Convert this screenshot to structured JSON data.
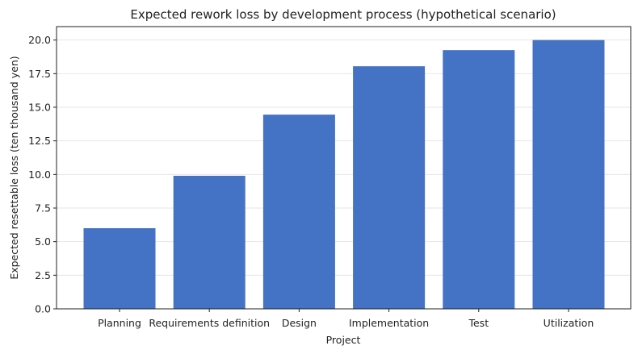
{
  "chart_data": {
    "type": "bar",
    "title": "Expected rework loss by development process (hypothetical scenario)",
    "xlabel": "Project",
    "ylabel": "Expected resettable loss (ten thousand yen)",
    "categories": [
      "Planning",
      "Requirements definition",
      "Design",
      "Implementation",
      "Test",
      "Utilization"
    ],
    "values": [
      6.0,
      9.9,
      14.45,
      18.05,
      19.25,
      20.0
    ],
    "ylim": [
      0,
      21
    ],
    "yticks": [
      "0.0",
      "2.5",
      "5.0",
      "7.5",
      "10.0",
      "12.5",
      "15.0",
      "17.5",
      "20.0"
    ],
    "grid": "horizontal",
    "bar_color": "#4472c4"
  }
}
